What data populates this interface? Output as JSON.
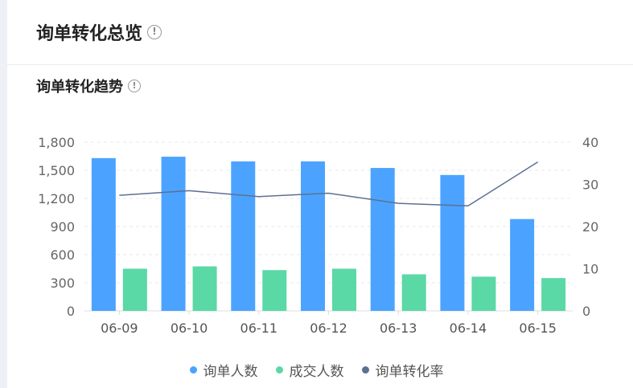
{
  "header": {
    "title": "询单转化总览"
  },
  "section": {
    "title": "询单转化趋势"
  },
  "colors": {
    "inquiries": "#4ba3ff",
    "deals": "#5ad8a6",
    "rate": "#5d7092"
  },
  "chart_data": {
    "type": "bar",
    "categories": [
      "06-09",
      "06-10",
      "06-11",
      "06-12",
      "06-13",
      "06-14",
      "06-15"
    ],
    "series": [
      {
        "name": "询单人数",
        "type": "bar",
        "axis": "left",
        "values": [
          1630,
          1645,
          1595,
          1595,
          1525,
          1450,
          980
        ]
      },
      {
        "name": "成交人数",
        "type": "bar",
        "axis": "left",
        "values": [
          450,
          475,
          435,
          450,
          390,
          365,
          350
        ]
      },
      {
        "name": "询单转化率",
        "type": "line",
        "axis": "right",
        "values": [
          27.4,
          28.5,
          27.1,
          27.9,
          25.5,
          24.9,
          35.3
        ]
      }
    ],
    "y_left": {
      "ticks": [
        "0",
        "300",
        "600",
        "900",
        "1,200",
        "1,500",
        "1,800"
      ],
      "range": [
        0,
        1800
      ]
    },
    "y_right": {
      "ticks": [
        "0",
        "10",
        "20",
        "30",
        "40"
      ],
      "range": [
        0,
        40
      ]
    },
    "grid": true,
    "legend_position": "bottom"
  }
}
